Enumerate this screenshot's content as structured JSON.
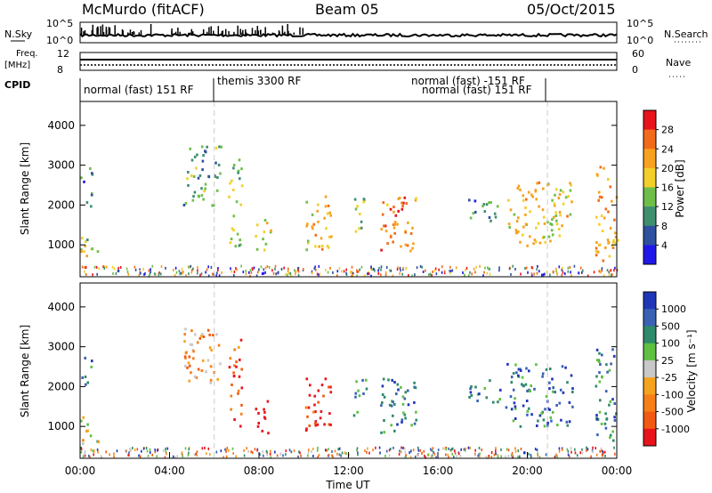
{
  "header": {
    "radar": "McMurdo (fitACF)",
    "beam": "Beam 05",
    "date": "05/Oct/2015"
  },
  "status_panels": {
    "nsky_label": "N.Sky",
    "nsky_ticks": [
      "10^5",
      "10^0"
    ],
    "nsearch_label": "N.Search",
    "nsearch_ticks": [
      "10^5",
      "10^0"
    ],
    "freq_label_1": "Freq.",
    "freq_label_2": "[MHz]",
    "freq_ticks": [
      "12",
      "8"
    ],
    "nave_label": "Nave",
    "nave_ticks": [
      "60",
      "0"
    ],
    "cpid_label": "CPID",
    "cpid_segments": [
      {
        "text": "normal (fast) 151 RF",
        "start_hour": 0.0,
        "end_hour": 6.0
      },
      {
        "text": "themis 3300 RF",
        "start_hour": 6.0,
        "end_hour": 20.9
      },
      {
        "text": "normal (fast) -151 RF",
        "start_hour": 20.9,
        "end_hour": 24.0
      },
      {
        "text": "normal (fast) 151 RF",
        "start_hour": 20.9,
        "end_hour": 24.0
      }
    ]
  },
  "chart_data": [
    {
      "type": "heatmap",
      "name": "power",
      "ylabel": "Slant Range [km]",
      "xlim": [
        0,
        24
      ],
      "ylim": [
        200,
        4600
      ],
      "yticks": [
        1000,
        2000,
        3000,
        4000
      ],
      "colorbar": {
        "label": "Power [dB]",
        "ticks": [
          "28",
          "24",
          "20",
          "16",
          "12",
          "8",
          "4"
        ],
        "colors": [
          "#e8141c",
          "#f26b1b",
          "#f7a21e",
          "#f2cf2a",
          "#6fbe4a",
          "#3f8f6f",
          "#2f4f9f",
          "#2018e8"
        ]
      },
      "echo_regions": [
        {
          "t0": 0.0,
          "t1": 0.9,
          "r0": 600,
          "r1": 1300,
          "level": 0.55
        },
        {
          "t0": 0.0,
          "t1": 0.5,
          "r0": 2000,
          "r1": 3000,
          "level": 0.3
        },
        {
          "t0": 4.6,
          "t1": 6.3,
          "r0": 2000,
          "r1": 3500,
          "level": 0.35
        },
        {
          "t0": 6.6,
          "t1": 7.2,
          "r0": 1000,
          "r1": 3200,
          "level": 0.45
        },
        {
          "t0": 7.8,
          "t1": 8.5,
          "r0": 800,
          "r1": 1700,
          "level": 0.55
        },
        {
          "t0": 10.0,
          "t1": 11.2,
          "r0": 900,
          "r1": 2300,
          "level": 0.6
        },
        {
          "t0": 12.2,
          "t1": 12.8,
          "r0": 1200,
          "r1": 2200,
          "level": 0.45
        },
        {
          "t0": 13.4,
          "t1": 15.0,
          "r0": 800,
          "r1": 2300,
          "level": 0.75
        },
        {
          "t0": 17.3,
          "t1": 18.8,
          "r0": 1600,
          "r1": 2200,
          "level": 0.3
        },
        {
          "t0": 19.0,
          "t1": 22.0,
          "r0": 1000,
          "r1": 2600,
          "level": 0.6
        },
        {
          "t0": 23.0,
          "t1": 24.0,
          "r0": 600,
          "r1": 3000,
          "level": 0.7
        }
      ]
    },
    {
      "type": "heatmap",
      "name": "velocity",
      "ylabel": "Slant Range [km]",
      "xlabel": "Time UT",
      "xlim": [
        0,
        24
      ],
      "ylim": [
        200,
        4600
      ],
      "yticks": [
        1000,
        2000,
        3000,
        4000
      ],
      "xticks": [
        "00:00",
        "04:00",
        "08:00",
        "12:00",
        "16:00",
        "20:00",
        "00:00"
      ],
      "colorbar": {
        "label": "Velocity [m s⁻¹]",
        "ticks": [
          "1000",
          "500",
          "100",
          "25",
          "-25",
          "-100",
          "-500",
          "-1000"
        ],
        "colors": [
          "#2036b8",
          "#3a62b4",
          "#2e8a6a",
          "#5fc043",
          "#c8c8c8",
          "#f5a31e",
          "#f77f1a",
          "#f25a14",
          "#e8141c"
        ]
      },
      "echo_regions": [
        {
          "t0": 0.0,
          "t1": 0.8,
          "r0": 600,
          "r1": 1300,
          "level": 0.5
        },
        {
          "t0": 0.0,
          "t1": 0.5,
          "r0": 2000,
          "r1": 2800,
          "level": 0.75
        },
        {
          "t0": 4.6,
          "t1": 6.3,
          "r0": 2000,
          "r1": 3500,
          "level": 0.35
        },
        {
          "t0": 6.6,
          "t1": 7.2,
          "r0": 1000,
          "r1": 3200,
          "level": 0.15
        },
        {
          "t0": 7.8,
          "t1": 8.5,
          "r0": 800,
          "r1": 1700,
          "level": 0.05
        },
        {
          "t0": 10.0,
          "t1": 11.2,
          "r0": 900,
          "r1": 2300,
          "level": 0.05
        },
        {
          "t0": 12.2,
          "t1": 12.8,
          "r0": 1200,
          "r1": 2200,
          "level": 0.75
        },
        {
          "t0": 13.4,
          "t1": 15.0,
          "r0": 800,
          "r1": 2300,
          "level": 0.78
        },
        {
          "t0": 17.3,
          "t1": 18.8,
          "r0": 1600,
          "r1": 2200,
          "level": 0.78
        },
        {
          "t0": 19.0,
          "t1": 22.0,
          "r0": 1000,
          "r1": 2600,
          "level": 0.8
        },
        {
          "t0": 23.0,
          "t1": 24.0,
          "r0": 600,
          "r1": 3000,
          "level": 0.78
        }
      ]
    }
  ]
}
